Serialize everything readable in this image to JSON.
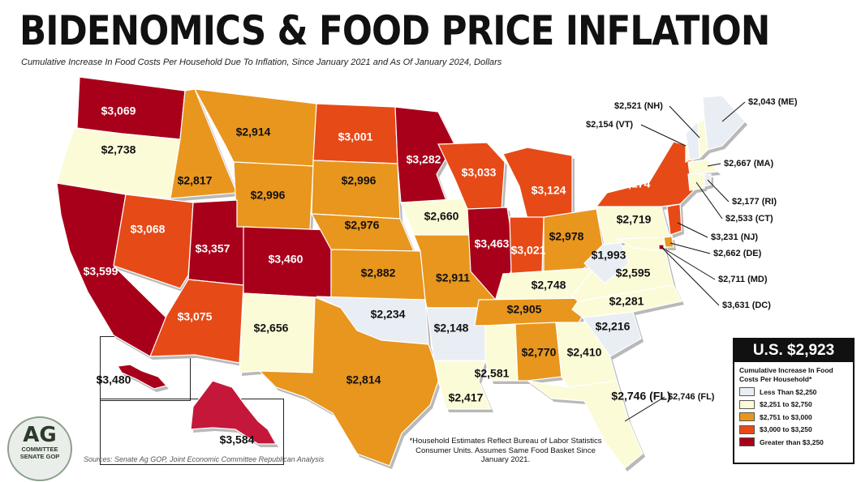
{
  "title": "BIDENOMICS & FOOD PRICE INFLATION",
  "subtitle": "Cumulative Increase In Food Costs Per Household Due To Inflation, Since January 2021 and As Of January 2024, Dollars",
  "colors": {
    "bin1": "#e9edf4",
    "bin2": "#fcfbd8",
    "bin3": "#e8961e",
    "bin4": "#e64a17",
    "bin5": "#a8001a",
    "alaska": "#c4173a",
    "border": "#ffffff",
    "shadow": "#b9b9b9"
  },
  "states": {
    "WA": "$3,069",
    "OR": "$2,738",
    "CA": "$3,599",
    "ID": "$2,817",
    "NV": "$3,068",
    "MT": "$2,914",
    "WY": "$2,996",
    "UT": "$3,357",
    "AZ": "$3,075",
    "CO": "$3,460",
    "NM": "$2,656",
    "ND": "$3,001",
    "SD": "$2,996",
    "NE": "$2,976",
    "KS": "$2,882",
    "OK": "$2,234",
    "TX": "$2,814",
    "MN": "$3,282",
    "IA": "$2,660",
    "MO": "$2,911",
    "AR": "$2,148",
    "LA": "$2,417",
    "WI": "$3,033",
    "IL": "$3,463",
    "MI": "$3,124",
    "IN": "$3,021",
    "OH": "$2,978",
    "KY": "$2,748",
    "TN": "$2,905",
    "MS": "$2,581",
    "AL": "$2,770",
    "GA": "$2,410",
    "FL": "$2,746 (FL)",
    "SC": "$2,216",
    "NC": "$2,281",
    "VA": "$2,595",
    "WV": "$1,993",
    "PA": "$2,719",
    "NY": "$3,174",
    "HI": "$3,480",
    "AK": "$3,584",
    "ME": "$2,043 (ME)",
    "NH": "$2,521 (NH)",
    "VT": "$2,154 (VT)",
    "MA": "$2,667 (MA)",
    "RI": "$2,177 (RI)",
    "CT": "$2,533 (CT)",
    "NJ": "$3,231 (NJ)",
    "DE": "$2,662 (DE)",
    "MD": "$2,711 (MD)",
    "DC": "$3,631 (DC)"
  },
  "legend": {
    "total": "U.S. $2,923",
    "title": "Cumulative Increase In Food Costs Per Household*",
    "items": [
      {
        "label": "Less Than $2,250",
        "color": "#e9edf4"
      },
      {
        "label": "$2,251 to $2,750",
        "color": "#fcfbd8"
      },
      {
        "label": "$2,751 to $3,000",
        "color": "#e8961e"
      },
      {
        "label": "$3,000 to $3,250",
        "color": "#e64a17"
      },
      {
        "label": "Greater than $3,250",
        "color": "#a8001a"
      }
    ]
  },
  "footnote": "*Household Estimates Reflect Bureau of Labor Statistics Consumer Units. Assumes Same Food Basket Since January 2021.",
  "sources": "Sources: Senate Ag GOP, Joint Economic Committee Republican Analysis",
  "logo": {
    "line1": "AG",
    "line2": "COMMITTEE",
    "line3": "SENATE GOP"
  }
}
